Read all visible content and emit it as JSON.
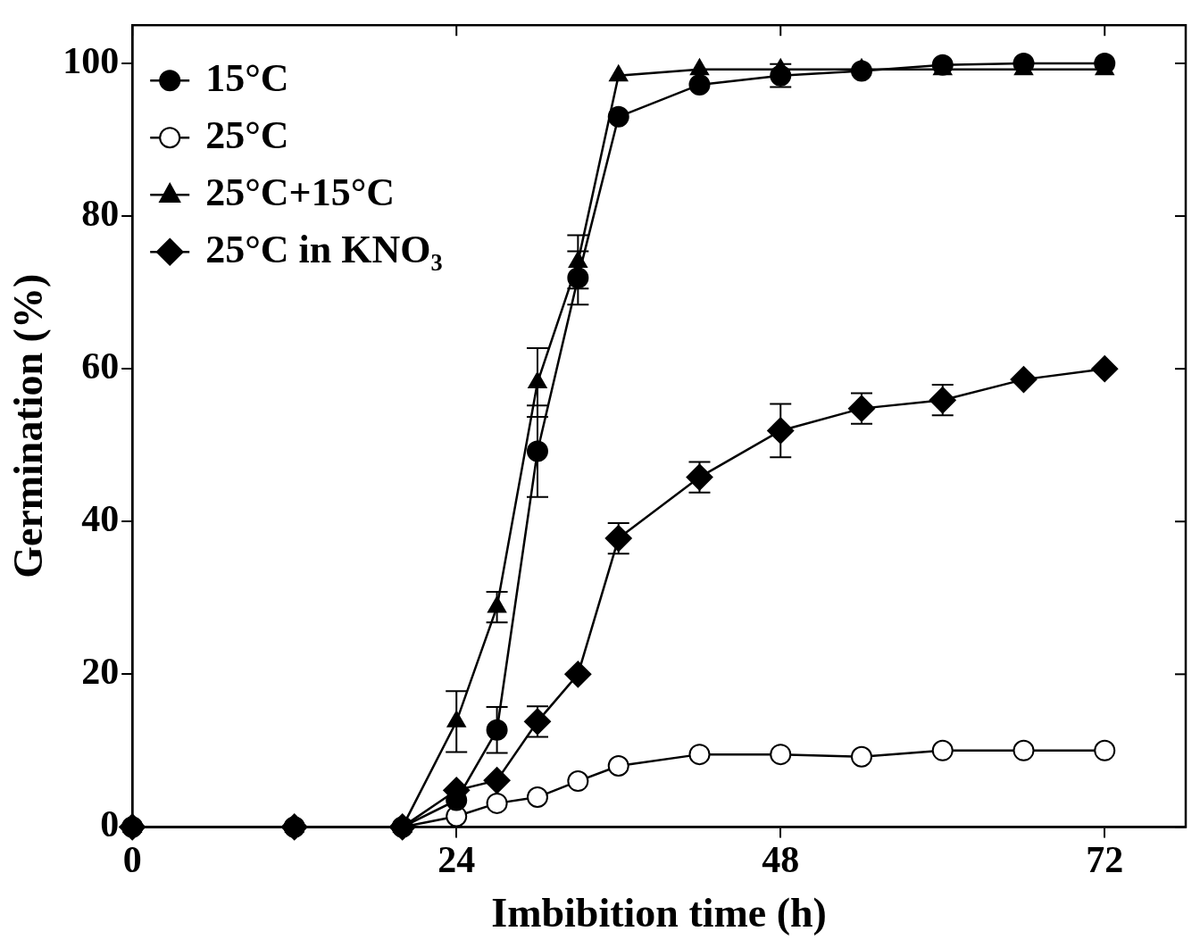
{
  "chart_data": {
    "type": "line",
    "x_label": "Imbibition time (h)",
    "y_label": "Germination (%)",
    "x": [
      0,
      12,
      20,
      24,
      27,
      30,
      33,
      36,
      42,
      48,
      54,
      60,
      66,
      72
    ],
    "xlim": [
      0,
      78
    ],
    "xticks": [
      0,
      24,
      48,
      72
    ],
    "ylim": [
      0,
      105
    ],
    "yticks": [
      0,
      20,
      40,
      60,
      80,
      100
    ],
    "grid": false,
    "legend": "upper left",
    "series": [
      {
        "name": "15°C",
        "color": "#000000",
        "marker": "circle",
        "values": [
          0,
          0,
          0,
          3.5,
          12.7,
          49.2,
          71.9,
          93,
          97.2,
          98.4,
          99,
          99.8,
          100,
          100
        ],
        "errors": [
          null,
          null,
          null,
          null,
          3,
          6,
          3.5,
          null,
          null,
          1.5,
          null,
          null,
          null,
          null
        ]
      },
      {
        "name": "25°C",
        "color": "#000000",
        "marker": "open_circle",
        "values": [
          0,
          0,
          0,
          1.4,
          3.1,
          3.9,
          6,
          8,
          9.5,
          9.5,
          9.2,
          10,
          10,
          10
        ],
        "errors": [
          null,
          null,
          null,
          null,
          null,
          null,
          null,
          null,
          null,
          null,
          null,
          null,
          null,
          null
        ]
      },
      {
        "name": "25°C+15°C",
        "color": "#000000",
        "marker": "triangle",
        "values": [
          0,
          0,
          0,
          13.8,
          28.8,
          58.2,
          74,
          98.4,
          99.2,
          99.2,
          99.2,
          99.2,
          99.2,
          99.2
        ],
        "errors": [
          null,
          null,
          null,
          4,
          2,
          4.5,
          3.5,
          null,
          null,
          null,
          null,
          null,
          null,
          null
        ]
      },
      {
        "name": "25°C in KNO₃",
        "color": "#000000",
        "marker": "diamond",
        "values": [
          0,
          0,
          0,
          4.8,
          6.1,
          13.8,
          20,
          37.8,
          45.8,
          51.9,
          54.8,
          55.9,
          58.6,
          60
        ],
        "errors": [
          null,
          null,
          null,
          null,
          null,
          2,
          null,
          2,
          2,
          3.5,
          2,
          2,
          null,
          null
        ]
      }
    ]
  }
}
